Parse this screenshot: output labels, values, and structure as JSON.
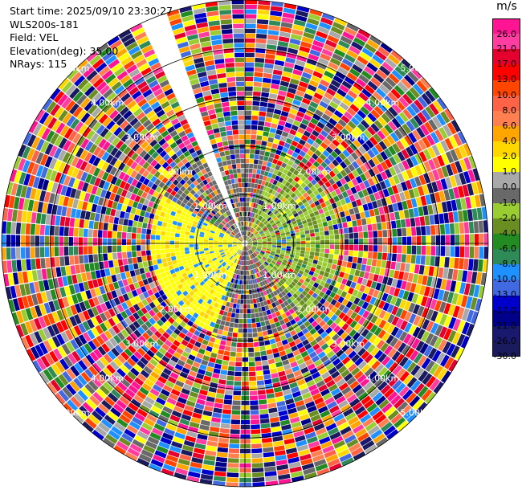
{
  "header": {
    "start_time": "Start time: 2025/09/10 23:30:27",
    "site": "WLS200s-181",
    "field": "Field: VEL",
    "elevation": "Elevation(deg): 35.00",
    "nrays": "NRays: 115"
  },
  "chart_data": {
    "type": "ppi",
    "field": "VEL",
    "unit": "m/s",
    "elevation_deg": 35.0,
    "n_rays": 115,
    "max_range_km": 5.0,
    "ring_labels": [
      "1.00km",
      "2.00km",
      "3.00km",
      "4.00km",
      "5.00km"
    ],
    "gap_azimuth_deg": [
      -24,
      -18
    ],
    "colorbar": {
      "ticks": [
        "26.0",
        "21.0",
        "17.0",
        "13.0",
        "10.0",
        "8.0",
        "6.0",
        "4.0",
        "2.0",
        "1.0",
        "0.0",
        "-1.0",
        "-2.0",
        "-4.0",
        "-6.0",
        "-8.0",
        "-10.0",
        "-13.0",
        "-17.0",
        "-21.0",
        "-26.0",
        "-30.0"
      ],
      "colors": [
        "#ff1493",
        "#ff3ca0",
        "#e6002e",
        "#ff0000",
        "#ff4500",
        "#ff6347",
        "#ff7f50",
        "#ffa500",
        "#ffd700",
        "#ffff00",
        "#a9a9a9",
        "#696969",
        "#9acd32",
        "#6b8e23",
        "#228b22",
        "#2e8b57",
        "#1e90ff",
        "#4169e1",
        "#0000cd",
        "#00008b",
        "#191970",
        "#1a1a5e"
      ]
    }
  }
}
